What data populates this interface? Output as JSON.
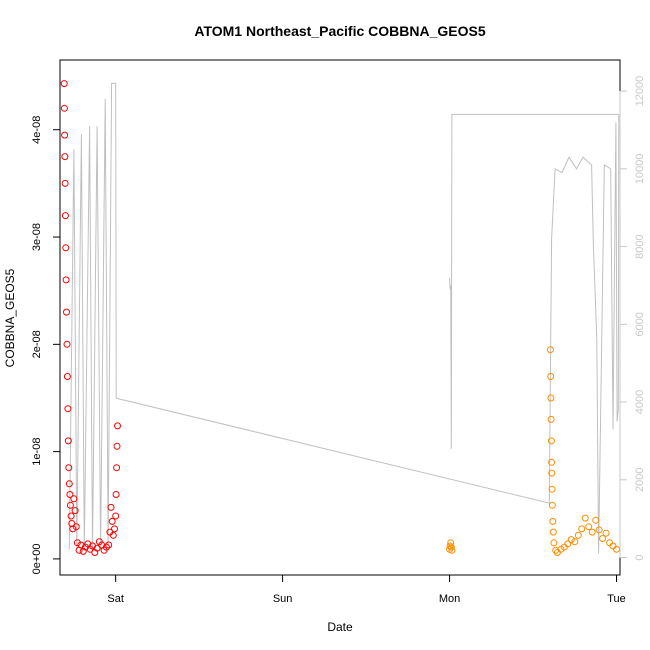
{
  "chart_data": {
    "type": "scatter",
    "title": "ATOM1 Northeast_Pacific COBBNA_GEOS5",
    "xlabel": "Date",
    "ylabel": "COBBNA_GEOS5",
    "x_range": [
      "Fri 16:00",
      "Tue 00:30"
    ],
    "y_range": [
      -1.5e-09,
      4.65e-08
    ],
    "x_ticks": [
      "Sat",
      "Sun",
      "Mon",
      "Tue"
    ],
    "y_ticks": [
      "0e+00",
      "1e-08",
      "2e-08",
      "3e-08",
      "4e-08"
    ],
    "y_right_ticks": [
      "0",
      "2000",
      "4000",
      "6000",
      "8000",
      "10000",
      "12000"
    ],
    "y_right_range": [
      -450,
      12800
    ],
    "grid": false,
    "colors": {
      "red": "#ff0000",
      "orange": "#ff8c00",
      "altitude": "#c0c0c0"
    },
    "series": [
      {
        "marker": "circle",
        "color": "#ff0000",
        "points": [
          [
            "Fri 16:36",
            4.43e-08
          ],
          [
            "Fri 16:38",
            4.2e-08
          ],
          [
            "Fri 16:40",
            3.95e-08
          ],
          [
            "Fri 16:42",
            3.75e-08
          ],
          [
            "Fri 16:44",
            3.5e-08
          ],
          [
            "Fri 16:47",
            3.2e-08
          ],
          [
            "Fri 16:50",
            2.9e-08
          ],
          [
            "Fri 16:53",
            2.6e-08
          ],
          [
            "Fri 16:56",
            2.3e-08
          ],
          [
            "Fri 17:00",
            2e-08
          ],
          [
            "Fri 17:04",
            1.7e-08
          ],
          [
            "Fri 17:08",
            1.4e-08
          ],
          [
            "Fri 17:12",
            1.1e-08
          ],
          [
            "Fri 17:16",
            8.5e-09
          ],
          [
            "Fri 17:20",
            7e-09
          ],
          [
            "Fri 17:25",
            6e-09
          ],
          [
            "Fri 17:30",
            5e-09
          ],
          [
            "Fri 17:36",
            4e-09
          ],
          [
            "Fri 17:42",
            3.3e-09
          ],
          [
            "Fri 17:50",
            2.8e-09
          ],
          [
            "Fri 18:00",
            5.6e-09
          ],
          [
            "Fri 18:10",
            4.5e-09
          ],
          [
            "Fri 18:20",
            3e-09
          ],
          [
            "Fri 18:30",
            1.5e-09
          ],
          [
            "Fri 18:45",
            8e-10
          ],
          [
            "Fri 19:00",
            1.3e-09
          ],
          [
            "Fri 19:20",
            7e-10
          ],
          [
            "Fri 19:40",
            1.1e-09
          ],
          [
            "Fri 20:00",
            1.4e-09
          ],
          [
            "Fri 20:20",
            9e-10
          ],
          [
            "Fri 20:40",
            1.2e-09
          ],
          [
            "Fri 21:00",
            6e-10
          ],
          [
            "Fri 21:20",
            1e-09
          ],
          [
            "Fri 21:40",
            1.6e-09
          ],
          [
            "Fri 22:00",
            1.3e-09
          ],
          [
            "Fri 22:20",
            8e-10
          ],
          [
            "Fri 22:40",
            1.1e-09
          ],
          [
            "Fri 23:00",
            1.3e-09
          ],
          [
            "Fri 23:10",
            2.5e-09
          ],
          [
            "Fri 23:20",
            4.8e-09
          ],
          [
            "Fri 23:30",
            3.5e-09
          ],
          [
            "Fri 23:40",
            2.2e-09
          ],
          [
            "Fri 23:50",
            2.8e-09
          ],
          [
            "Sat 00:00",
            4e-09
          ],
          [
            "Sat 00:04",
            6e-09
          ],
          [
            "Sat 00:08",
            8.5e-09
          ],
          [
            "Sat 00:12",
            1.05e-08
          ],
          [
            "Sat 00:16",
            1.24e-08
          ]
        ]
      },
      {
        "marker": "circle",
        "color": "#ff8c00",
        "points": [
          [
            "Mon 00:00",
            9e-10
          ],
          [
            "Mon 00:05",
            1.2e-09
          ],
          [
            "Mon 00:10",
            1.5e-09
          ],
          [
            "Mon 00:15",
            1.1e-09
          ],
          [
            "Mon 00:20",
            8e-10
          ],
          [
            "Mon 14:30",
            1.95e-08
          ],
          [
            "Mon 14:32",
            1.7e-08
          ],
          [
            "Mon 14:34",
            1.5e-08
          ],
          [
            "Mon 14:36",
            1.3e-08
          ],
          [
            "Mon 14:38",
            1.1e-08
          ],
          [
            "Mon 14:40",
            9e-09
          ],
          [
            "Mon 14:42",
            8e-09
          ],
          [
            "Mon 14:44",
            6.5e-09
          ],
          [
            "Mon 14:46",
            5e-09
          ],
          [
            "Mon 14:50",
            3.5e-09
          ],
          [
            "Mon 14:55",
            2.5e-09
          ],
          [
            "Mon 15:00",
            1.5e-09
          ],
          [
            "Mon 15:15",
            8e-10
          ],
          [
            "Mon 15:30",
            6e-10
          ],
          [
            "Mon 16:00",
            9e-10
          ],
          [
            "Mon 16:30",
            1.1e-09
          ],
          [
            "Mon 17:00",
            1.4e-09
          ],
          [
            "Mon 17:30",
            1.8e-09
          ],
          [
            "Mon 18:00",
            1.6e-09
          ],
          [
            "Mon 18:30",
            2.2e-09
          ],
          [
            "Mon 19:00",
            2.8e-09
          ],
          [
            "Mon 19:30",
            3.8e-09
          ],
          [
            "Mon 20:00",
            3e-09
          ],
          [
            "Mon 20:30",
            2.5e-09
          ],
          [
            "Mon 21:00",
            3.6e-09
          ],
          [
            "Mon 21:30",
            2.7e-09
          ],
          [
            "Mon 22:00",
            1.9e-09
          ],
          [
            "Mon 22:30",
            2.4e-09
          ],
          [
            "Mon 23:00",
            1.5e-09
          ],
          [
            "Mon 23:30",
            1.2e-09
          ],
          [
            "Tue 00:00",
            9e-10
          ]
        ]
      }
    ],
    "altitude_series": {
      "color": "#c0c0c0",
      "points": [
        [
          "Fri 17:20",
          200
        ],
        [
          "Fri 18:00",
          10500
        ],
        [
          "Fri 18:25",
          200
        ],
        [
          "Fri 19:05",
          10900
        ],
        [
          "Fri 19:30",
          200
        ],
        [
          "Fri 20:15",
          11100
        ],
        [
          "Fri 20:40",
          200
        ],
        [
          "Fri 21:20",
          11100
        ],
        [
          "Fri 21:50",
          200
        ],
        [
          "Fri 22:30",
          11800
        ],
        [
          "Fri 22:55",
          300
        ],
        [
          "Fri 23:25",
          12200
        ],
        [
          "Sat 00:00",
          12200
        ],
        [
          "Sat 00:05",
          4100
        ],
        [
          "Mon 14:20",
          1400
        ],
        [
          "Mon 14:40",
          8200
        ],
        [
          "Mon 15:10",
          10000
        ],
        [
          "Mon 16:10",
          9900
        ],
        [
          "Mon 17:10",
          10300
        ],
        [
          "Mon 18:15",
          10000
        ],
        [
          "Mon 19:10",
          10300
        ],
        [
          "Mon 20:25",
          10100
        ],
        [
          "Mon 20:40",
          8100
        ],
        [
          "Mon 21:10",
          5600
        ],
        [
          "Mon 21:25",
          100
        ],
        [
          "Mon 22:15",
          10100
        ],
        [
          "Mon 23:10",
          10000
        ],
        [
          "Mon 23:30",
          3300
        ],
        [
          "Mon 23:55",
          11200
        ],
        [
          "Tue 00:05",
          3500
        ],
        [
          "Tue 00:15",
          3800
        ],
        [
          "Tue 00:20",
          11400
        ]
      ]
    },
    "altitude_segment_mon_early": {
      "color": "#c0c0c0",
      "points": [
        [
          "Mon 00:00",
          7200
        ],
        [
          "Mon 00:05",
          6900
        ],
        [
          "Mon 00:10",
          7000
        ],
        [
          "Mon 00:15",
          2800
        ],
        [
          "Mon 00:20",
          11400
        ],
        [
          "Tue 00:20",
          11400
        ]
      ]
    }
  }
}
